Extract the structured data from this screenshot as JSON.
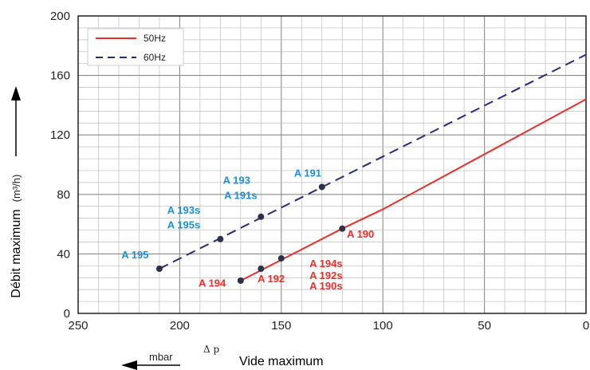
{
  "chart_data": {
    "type": "line",
    "xlim": [
      250,
      0
    ],
    "ylim": [
      0,
      200
    ],
    "x_ticks": [
      "250",
      "200",
      "150",
      "100",
      "50",
      "0"
    ],
    "y_ticks": [
      "0",
      "40",
      "80",
      "120",
      "160",
      "200"
    ],
    "grid": true,
    "legend_position": "top-left",
    "colors": {
      "50hz": "#e8302c",
      "60hz": "#2a2a7a",
      "label_blue": "#1e8fd6",
      "label_red": "#e8302c",
      "point": "#2a3148"
    },
    "series": [
      {
        "name": "50Hz",
        "style": "solid",
        "color": "#e8302c",
        "x": [
          170,
          120,
          100,
          0
        ],
        "y": [
          22,
          57,
          70,
          144
        ]
      },
      {
        "name": "60Hz",
        "style": "dashed",
        "color": "#2a2a7a",
        "x": [
          210,
          0
        ],
        "y": [
          30,
          174
        ]
      }
    ],
    "points": [
      {
        "x": 210,
        "y": 30
      },
      {
        "x": 180,
        "y": 50
      },
      {
        "x": 160,
        "y": 65
      },
      {
        "x": 130,
        "y": 85
      },
      {
        "x": 170,
        "y": 22
      },
      {
        "x": 160,
        "y": 30
      },
      {
        "x": 150,
        "y": 37
      },
      {
        "x": 120,
        "y": 57
      }
    ],
    "annotations": [
      {
        "text": "A 195",
        "x": 222,
        "y": 37,
        "color": "blue"
      },
      {
        "text": "A 193s",
        "x": 198,
        "y": 67,
        "color": "blue"
      },
      {
        "text": "A 195s",
        "x": 198,
        "y": 57,
        "color": "blue"
      },
      {
        "text": "A 193",
        "x": 172,
        "y": 87,
        "color": "blue"
      },
      {
        "text": "A 191s",
        "x": 170,
        "y": 77,
        "color": "blue"
      },
      {
        "text": "A 191",
        "x": 137,
        "y": 92,
        "color": "blue"
      },
      {
        "text": "A 190",
        "x": 111,
        "y": 51,
        "color": "red"
      },
      {
        "text": "A 194s",
        "x": 128,
        "y": 31,
        "color": "red"
      },
      {
        "text": "A 192s",
        "x": 128,
        "y": 23,
        "color": "red"
      },
      {
        "text": "A 190s",
        "x": 128,
        "y": 16,
        "color": "red"
      },
      {
        "text": "A 194",
        "x": 184,
        "y": 18,
        "color": "red"
      },
      {
        "text": "A 192",
        "x": 155,
        "y": 21,
        "color": "red"
      }
    ],
    "ylabel": "Débit maximum",
    "ylabel_unit": "(m³/h)",
    "xlabel": "Vide maximum",
    "xlabel_unit": "mbar",
    "xlabel_symbol": "Δ p"
  }
}
